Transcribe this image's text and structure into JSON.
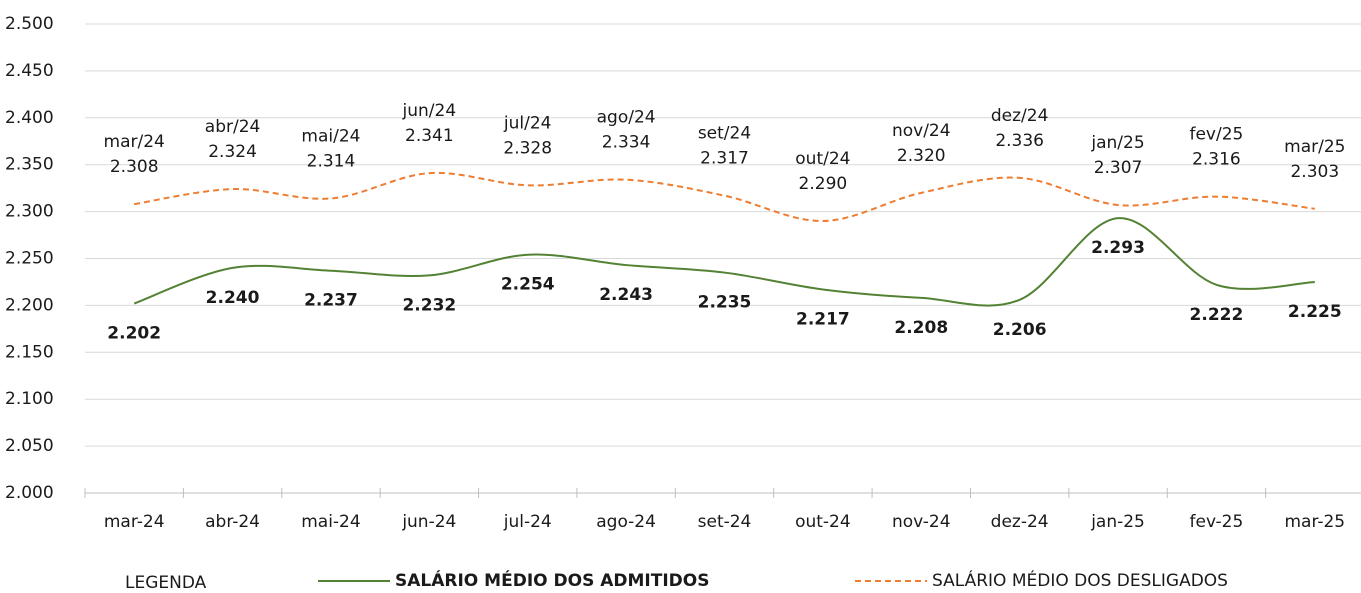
{
  "chart_data": {
    "type": "line",
    "categories": [
      "mar-24",
      "abr-24",
      "mai-24",
      "jun-24",
      "jul-24",
      "ago-24",
      "set-24",
      "out-24",
      "nov-24",
      "dez-24",
      "jan-25",
      "fev-25",
      "mar-25"
    ],
    "series": [
      {
        "name": "SALÁRIO MÉDIO DOS ADMITIDOS",
        "color": "#548235",
        "dash": false,
        "label_position": "below",
        "values": [
          2202,
          2240,
          2237,
          2232,
          2254,
          2243,
          2235,
          2217,
          2208,
          2206,
          2293,
          2222,
          2225
        ],
        "value_labels": [
          "2.202",
          "2.240",
          "2.237",
          "2.232",
          "2.254",
          "2.243",
          "2.235",
          "2.217",
          "2.208",
          "2.206",
          "2.293",
          "2.222",
          "2.225"
        ]
      },
      {
        "name": "SALÁRIO MÉDIO DOS DESLIGADOS",
        "color": "#ed7d31",
        "dash": true,
        "label_position": "above",
        "values": [
          2308,
          2324,
          2314,
          2341,
          2328,
          2334,
          2317,
          2290,
          2320,
          2336,
          2307,
          2316,
          2303
        ],
        "value_labels": [
          "2.308",
          "2.324",
          "2.314",
          "2.341",
          "2.328",
          "2.334",
          "2.317",
          "2.290",
          "2.320",
          "2.336",
          "2.307",
          "2.316",
          "2.303"
        ],
        "point_labels": [
          "mar/24",
          "abr/24",
          "mai/24",
          "jun/24",
          "jul/24",
          "ago/24",
          "set/24",
          "out/24",
          "nov/24",
          "dez/24",
          "jan/25",
          "fev/25",
          "mar/25"
        ]
      }
    ],
    "ylim": [
      2000,
      2500
    ],
    "yticks": [
      {
        "value": 2000,
        "label": "2.000"
      },
      {
        "value": 2050,
        "label": "2.050"
      },
      {
        "value": 2100,
        "label": "2.100"
      },
      {
        "value": 2150,
        "label": "2.150"
      },
      {
        "value": 2200,
        "label": "2.200"
      },
      {
        "value": 2250,
        "label": "2.250"
      },
      {
        "value": 2300,
        "label": "2.300"
      },
      {
        "value": 2350,
        "label": "2.350"
      },
      {
        "value": 2400,
        "label": "2.400"
      },
      {
        "value": 2450,
        "label": "2.450"
      },
      {
        "value": 2500,
        "label": "2.500"
      }
    ],
    "grid": true,
    "legend_title": "LEGENDA"
  }
}
